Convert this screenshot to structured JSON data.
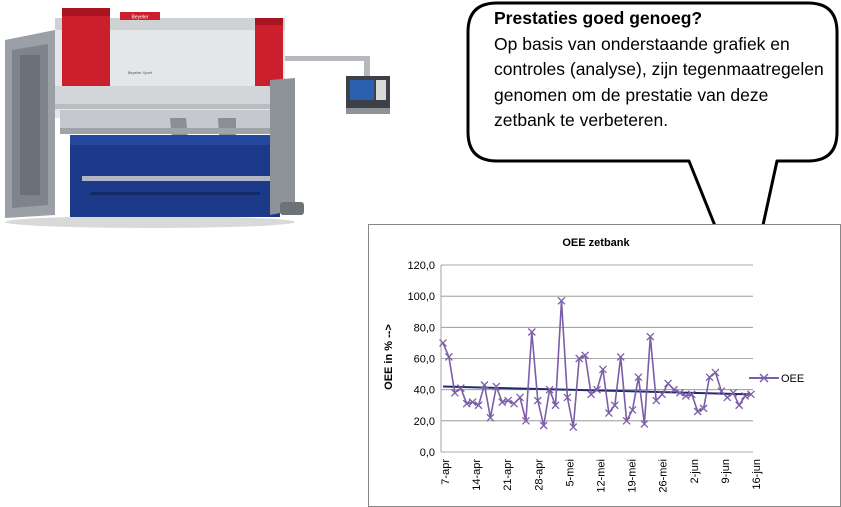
{
  "callout": {
    "title": "Prestaties goed genoeg?",
    "body": "Op basis van onderstaande grafiek en controles (analyse), zijn tegenmaatregelen genomen om de prestatie van deze zetbank te verbeteren."
  },
  "machine": {
    "brand_plate": "Beyeler",
    "model_text": "Beyeler Xpert",
    "colors": {
      "frame": "#e8e8e8",
      "side": "#cc1f2d",
      "blue": "#1d3a8a"
    }
  },
  "chart_data": {
    "type": "line",
    "title": "OEE zetbank",
    "ylabel": "OEE in % -->",
    "xlabel": "",
    "ylim": [
      0,
      120
    ],
    "yticks": [
      "0,0",
      "20,0",
      "40,0",
      "60,0",
      "80,0",
      "100,0",
      "120,0"
    ],
    "xtick_labels": [
      "7-apr",
      "14-apr",
      "21-apr",
      "28-apr",
      "5-mei",
      "12-mei",
      "19-mei",
      "26-mei",
      "2-jun",
      "9-jun",
      "16-jun"
    ],
    "legend_position": "right",
    "grid": true,
    "series": [
      {
        "name": "OEE",
        "color": "#7b5ea7",
        "marker": "x",
        "values": [
          70,
          61,
          38,
          41,
          31,
          32,
          30,
          43,
          22,
          42,
          32,
          33,
          31,
          35,
          20,
          77,
          33,
          17,
          40,
          30,
          97,
          35,
          16,
          60,
          62,
          37,
          40,
          53,
          25,
          30,
          61,
          20,
          27,
          48,
          18,
          74,
          33,
          37,
          44,
          40,
          38,
          36,
          37,
          26,
          28,
          48,
          51,
          39,
          35,
          38,
          30,
          36,
          37
        ]
      }
    ],
    "trendline": {
      "start": 42,
      "end": 37,
      "color": "#1f2b6e"
    }
  }
}
